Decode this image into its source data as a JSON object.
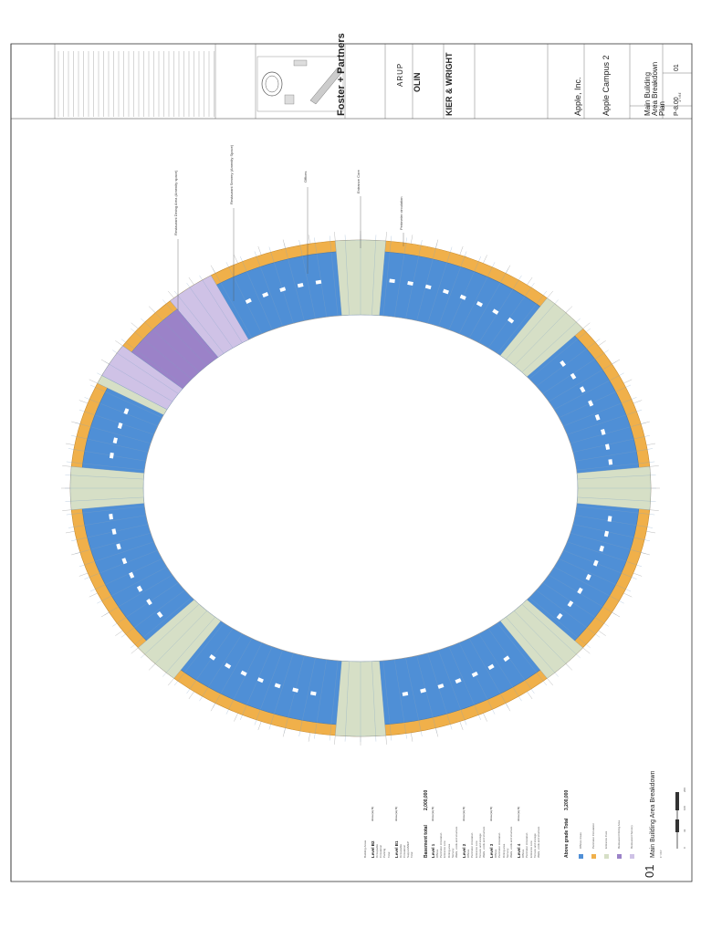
{
  "title_block": {
    "firm": "Foster + Partners",
    "consultant_1": "ARUP",
    "consultant_2": "OLIN",
    "consultant_3": "KIER & WRIGHT",
    "client": "Apple, Inc.",
    "project": "Apple Campus 2",
    "drawing_title_1": "Main Building",
    "drawing_title_2": "Area Breakdown",
    "drawing_title_3": "Plan",
    "sheet_number": "P-8.00",
    "revision": "01",
    "scale": "1\"=64'"
  },
  "plan_labels": {
    "restaurant_dining": "Restaurant Dining Area (Amenity space)",
    "restaurant_servery": "Restaurant Servery (Amenity Space)",
    "offices": "Offices",
    "entrance_core": "Entrance Core",
    "perimeter_circulation": "Perimeter circulation"
  },
  "area_table": {
    "header": "Building Areas",
    "basement_total_label": "Basement total",
    "basement_total_value": "2,000,000",
    "above_grade_label": "Above grade Total",
    "above_grade_value": "3,200,000",
    "col_area": "Area (sq ft)",
    "levels": [
      {
        "name": "Level B2",
        "rows": [
          "Occupiable",
          "Circulation",
          "Parking",
          "Total"
        ]
      },
      {
        "name": "Level B1",
        "rows": [
          "Occupiable",
          "Circulation",
          "Support/MEP",
          "Total"
        ]
      },
      {
        "name": "Level 1",
        "rows": [
          "Offices",
          "Perimeter circulation",
          "Entrance core",
          "Dining area",
          "Servery",
          "Walls, voids and structure"
        ]
      },
      {
        "name": "Level 2",
        "rows": [
          "Offices",
          "Perimeter circulation",
          "Entrance core",
          "Terrace and storage",
          "Walls, voids and structure"
        ]
      },
      {
        "name": "Level 3",
        "rows": [
          "Offices",
          "Perimeter circulation",
          "Dining area",
          "Servery",
          "Walls, voids and structure"
        ]
      },
      {
        "name": "Level 4",
        "rows": [
          "Offices",
          "Perimeter circulation",
          "Entrance core",
          "Terrace and storage",
          "Walls, voids and structure"
        ]
      }
    ]
  },
  "legend": [
    {
      "label": "Offices Areas",
      "color": "#4f8fd6"
    },
    {
      "label": "Perimeter Circulation",
      "color": "#f0b04a"
    },
    {
      "label": "Entrance Core",
      "color": "#d6dfc6"
    },
    {
      "label": "Restaurant Dining Area",
      "color": "#9b82c8"
    },
    {
      "label": "Restaurant Servery",
      "color": "#cfc2e6"
    }
  ],
  "drawing_caption": {
    "number": "01",
    "title": "Main Building Area Breakdown",
    "scale_label": "1\"=64'",
    "scale_ticks": [
      "0",
      "32",
      "100",
      "200"
    ]
  },
  "colors": {
    "office": "#4f8fd6",
    "perimeter": "#f0b04a",
    "core": "#d6dfc6",
    "dining": "#9b82c8",
    "servery": "#cfc2e6"
  }
}
